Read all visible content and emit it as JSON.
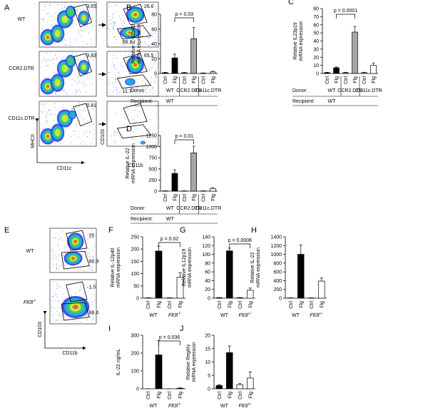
{
  "flow_panels": [
    {
      "panel": "A",
      "rows": [
        {
          "label": "WT",
          "plots": [
            {
              "gates": [
                3.65
              ]
            },
            {
              "gates": [
                26.6,
                66.2
              ]
            }
          ]
        },
        {
          "label": "CCR2.DTR",
          "plots": [
            {
              "gates": [
                3.83
              ]
            },
            {
              "gates": [
                65.5,
                11.7
              ]
            }
          ]
        },
        {
          "label": "CD11c.DTR",
          "plots": [
            {
              "gates": [
                0.41
              ]
            },
            {
              "gates": []
            }
          ]
        }
      ],
      "axis_labels": [
        "MHCII",
        "CD11c",
        "CD103",
        "CD11b"
      ]
    },
    {
      "panel": "E",
      "rows": [
        {
          "label": {
            "name": "WT"
          },
          "plots": [
            {
              "gates": [
                25,
                60.9
              ]
            }
          ]
        },
        {
          "label": {
            "name": "Flt3l",
            "sup": "-/-"
          },
          "plots": [
            {
              "gates": [
                1.5,
                88.4
              ]
            }
          ]
        }
      ],
      "axis_labels": [
        "CD103",
        "CD11b"
      ]
    }
  ],
  "chart_data": [
    {
      "type": "bar",
      "panel": "B",
      "ylabel": [
        "Relative IL-12p40",
        "mRNA expression"
      ],
      "categories": [
        "Ctrl",
        "Flg",
        "Ctrl",
        "Flg",
        "Ctrl",
        "Flg"
      ],
      "values": [
        1,
        21,
        1,
        47,
        0.5,
        2
      ],
      "errors": [
        0.5,
        5,
        0.5,
        15,
        0.3,
        1
      ],
      "colors": [
        "#000000",
        "#000000",
        "#a6a6a6",
        "#a6a6a6",
        "#ffffff",
        "#ffffff"
      ],
      "groups": [
        "WT",
        "CCR2.DTR",
        "CD11c.DTR"
      ],
      "donor_label": "Donor:",
      "recipient_label": "Recipient:",
      "recipient": "WT",
      "annotation": "p = 0.03",
      "ylim": [
        0,
        80
      ],
      "yticks": [
        0,
        20,
        40,
        60,
        80
      ]
    },
    {
      "type": "bar",
      "panel": "C",
      "ylabel": [
        "Relative IL23p19",
        "mRNA expression"
      ],
      "categories": [
        "Ctrl",
        "Flg",
        "Ctrl",
        "Flg",
        "Ctrl",
        "Flg"
      ],
      "values": [
        1,
        7,
        1,
        51,
        1,
        10
      ],
      "errors": [
        0.5,
        1,
        0.5,
        7,
        0.5,
        3
      ],
      "colors": [
        "#000000",
        "#000000",
        "#a6a6a6",
        "#a6a6a6",
        "#ffffff",
        "#ffffff"
      ],
      "groups": [
        "WT",
        "CCR2.DTR",
        "CD11c.DTR"
      ],
      "donor_label": "Donor:",
      "recipient_label": "Recipient:",
      "recipient": "WT",
      "annotation": "p = 0.0001",
      "ylim": [
        0,
        80
      ],
      "yticks": [
        0,
        10,
        20,
        30,
        40,
        50,
        60,
        70,
        80
      ]
    },
    {
      "type": "bar",
      "panel": "D",
      "ylabel": [
        "Relative IL-22",
        "mRNA expression"
      ],
      "categories": [
        "Ctrl",
        "Flg",
        "Ctrl",
        "Flg",
        "Ctrl",
        "Flg"
      ],
      "values": [
        5,
        400,
        5,
        860,
        5,
        60
      ],
      "errors": [
        3,
        80,
        3,
        150,
        3,
        20
      ],
      "colors": [
        "#000000",
        "#000000",
        "#a6a6a6",
        "#a6a6a6",
        "#ffffff",
        "#ffffff"
      ],
      "groups": [
        "WT",
        "CCR2.DTR",
        "CD11c.DTR"
      ],
      "donor_label": "Donor:",
      "recipient_label": "Recipient:",
      "recipient": "WT",
      "annotation": "p = 0.01",
      "ylim": [
        0,
        1250
      ],
      "yticks": [
        0,
        250,
        500,
        750,
        1000,
        1250
      ]
    },
    {
      "type": "bar",
      "panel": "F",
      "ylabel": [
        "Relative IL-12p40",
        "mRNA expression"
      ],
      "categories": [
        "Ctrl",
        "Flg",
        "Ctrl",
        "Flg"
      ],
      "values": [
        1,
        192,
        1,
        85
      ],
      "errors": [
        0.5,
        20,
        0.5,
        18
      ],
      "colors": [
        "#000000",
        "#000000",
        "#ffffff",
        "#ffffff"
      ],
      "groups": [
        {
          "name": "WT"
        },
        {
          "name": "Flt3l",
          "sup": "-/-"
        }
      ],
      "annotation": "p = 0.02",
      "ylim": [
        0,
        250
      ],
      "yticks": [
        0,
        50,
        100,
        150,
        200,
        250
      ]
    },
    {
      "type": "bar",
      "panel": "G",
      "ylabel": [
        "Relative IL12p19",
        "mRNA expression"
      ],
      "categories": [
        "Ctrl",
        "Flg",
        "Ctrl",
        "Flg"
      ],
      "values": [
        1,
        108,
        1,
        18
      ],
      "errors": [
        0.5,
        6,
        0.5,
        5
      ],
      "colors": [
        "#000000",
        "#000000",
        "#ffffff",
        "#ffffff"
      ],
      "groups": [
        {
          "name": "WT"
        },
        {
          "name": "Flt3l",
          "sup": "-/-"
        }
      ],
      "annotation": "p = 0.0008",
      "ylim": [
        0,
        140
      ],
      "yticks": [
        0,
        20,
        40,
        60,
        80,
        100,
        120,
        140
      ]
    },
    {
      "type": "bar",
      "panel": "H",
      "ylabel": [
        "Relative IL-22",
        "mRNA expression"
      ],
      "categories": [
        "Ctrl",
        "Flg",
        "Ctrl",
        "Flg"
      ],
      "values": [
        5,
        1000,
        5,
        390
      ],
      "errors": [
        3,
        210,
        3,
        70
      ],
      "colors": [
        "#000000",
        "#000000",
        "#ffffff",
        "#ffffff"
      ],
      "groups": [
        {
          "name": "WT"
        },
        {
          "name": "Flt3l",
          "sup": "-/-"
        }
      ],
      "ylim": [
        0,
        1400
      ],
      "yticks": [
        0,
        200,
        400,
        600,
        800,
        1000,
        1200,
        1400
      ]
    },
    {
      "type": "bar",
      "panel": "I",
      "ylabel": [
        "IL-22 ng/mL"
      ],
      "categories": [
        "Ctrl",
        "Flg",
        "Ctrl",
        "Flg"
      ],
      "values": [
        0,
        190,
        0,
        3
      ],
      "errors": [
        0,
        80,
        0,
        2
      ],
      "colors": [
        "#000000",
        "#000000",
        "#ffffff",
        "#ffffff"
      ],
      "groups": [
        {
          "name": "WT"
        },
        {
          "name": "Flt3l",
          "sup": "-/-"
        }
      ],
      "annotation": "p = 0.036",
      "ylim": [
        0,
        300
      ],
      "yticks": [
        0,
        100,
        200,
        300
      ]
    },
    {
      "type": "bar",
      "panel": "J",
      "ylabel": [
        "Relative RegIIIγ",
        "mRNA expression"
      ],
      "categories": [
        "Ctrl",
        "Flg",
        "Ctrl",
        "Flg"
      ],
      "values": [
        1.2,
        13.5,
        1.5,
        4
      ],
      "errors": [
        0.3,
        2.5,
        0.5,
        2.3
      ],
      "colors": [
        "#000000",
        "#000000",
        "#ffffff",
        "#ffffff"
      ],
      "groups": [
        {
          "name": "WT"
        },
        {
          "name": "Flt3l",
          "sup": "-/-"
        }
      ],
      "ylim": [
        0,
        20
      ],
      "yticks": [
        0,
        5,
        10,
        15,
        20
      ]
    }
  ]
}
